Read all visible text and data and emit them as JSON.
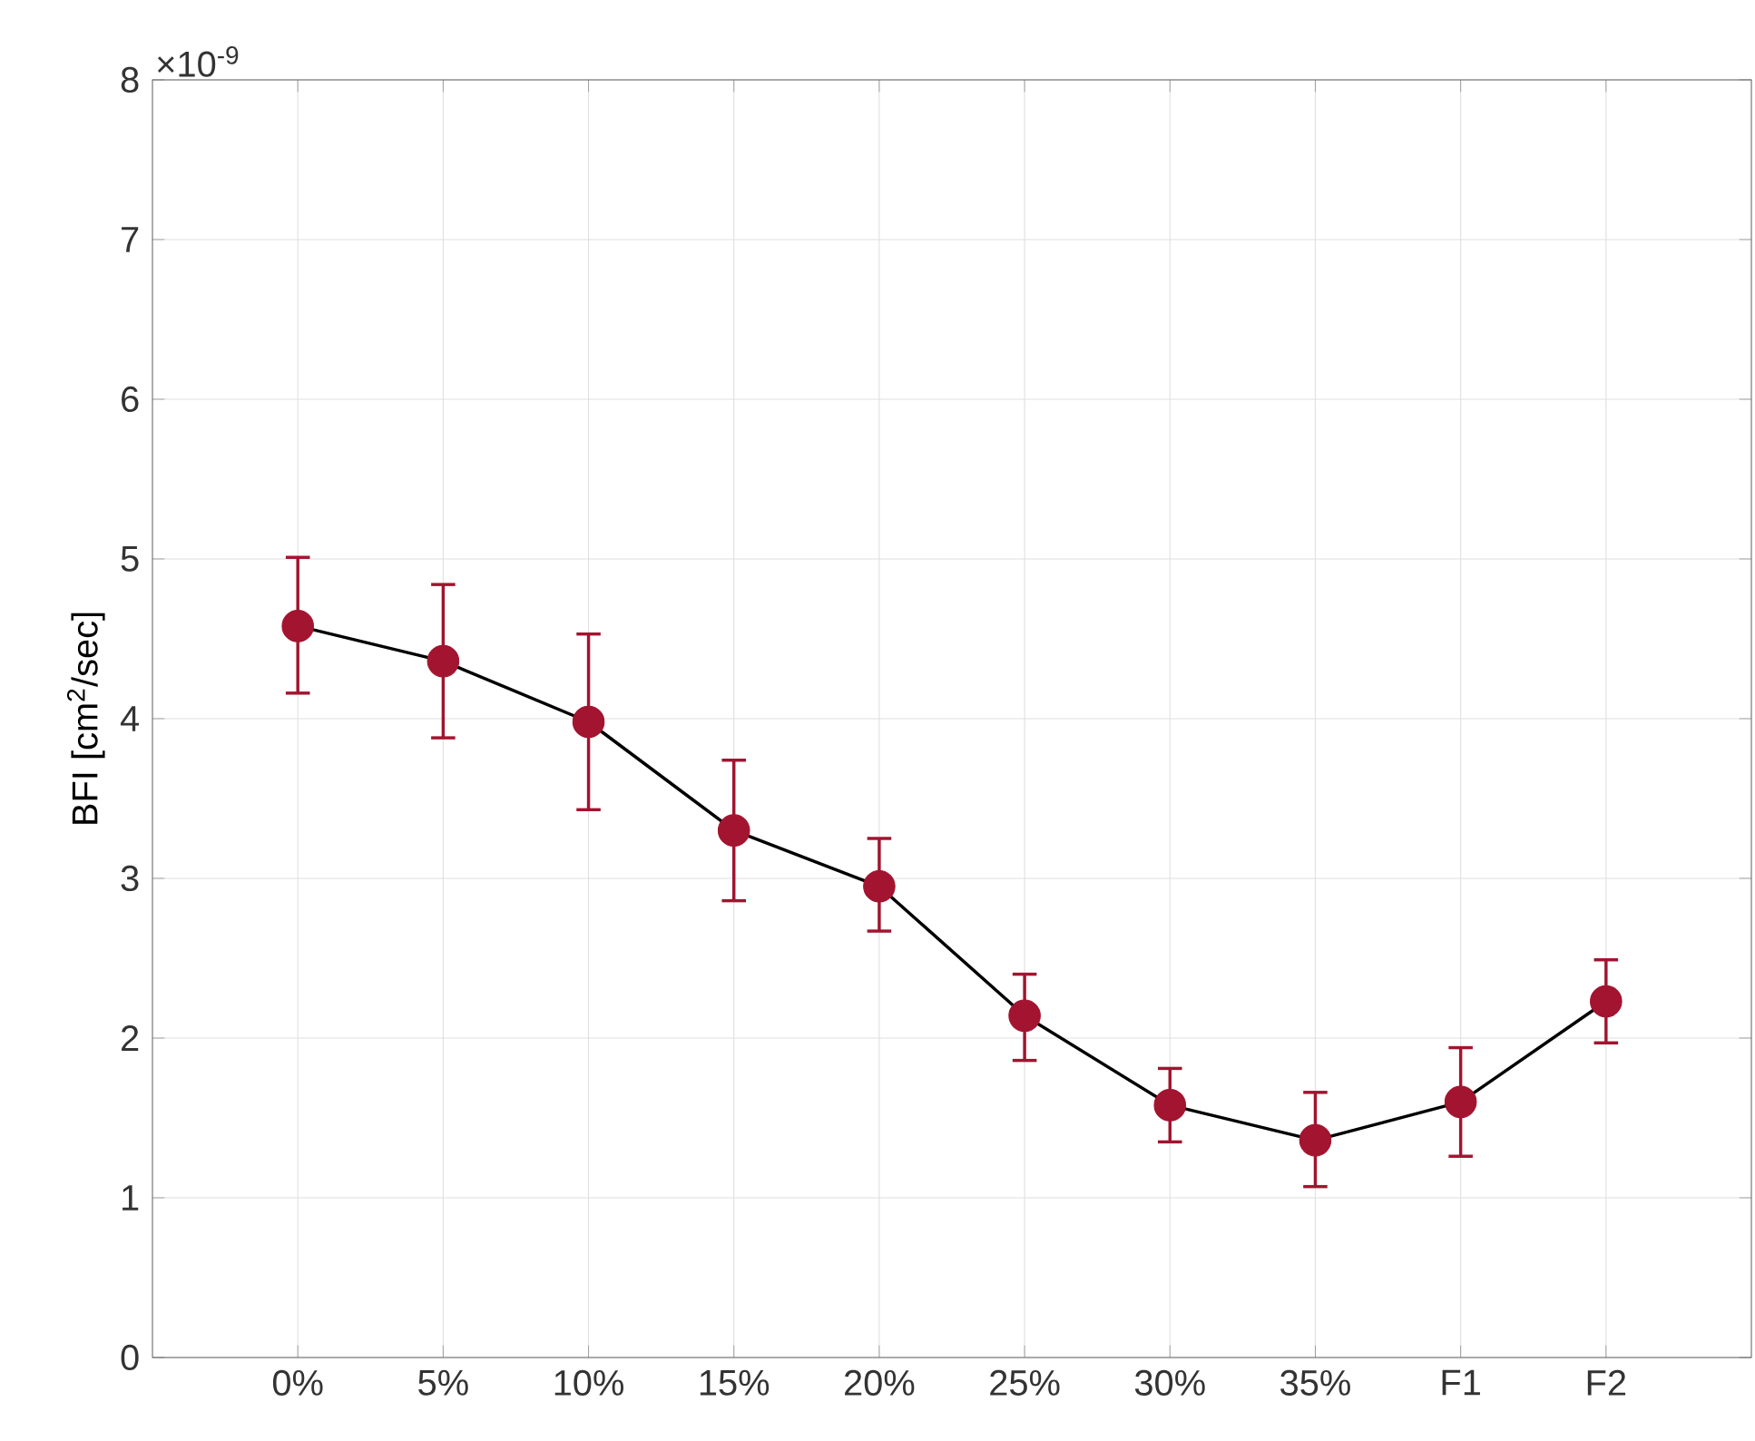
{
  "chart_data": {
    "type": "line",
    "ylabel": "BFI [cm$^{2}$/sec]",
    "annotations": [
      "×10$^{-9}$"
    ],
    "categories": [
      "0%",
      "5%",
      "10%",
      "15%",
      "20%",
      "25%",
      "30%",
      "35%",
      "F1",
      "F2"
    ],
    "series": [
      {
        "color": "#a2142f",
        "values": [
          4.58,
          4.36,
          3.98,
          3.3,
          2.95,
          2.14,
          1.58,
          1.36,
          1.6,
          2.23
        ],
        "errors": [
          [
            4.16,
            5.01
          ],
          [
            3.88,
            4.84
          ],
          [
            3.43,
            4.53
          ],
          [
            2.86,
            3.74
          ],
          [
            2.67,
            3.25
          ],
          [
            1.86,
            2.4
          ],
          [
            1.35,
            1.81
          ],
          [
            1.07,
            1.66
          ],
          [
            1.26,
            1.94
          ],
          [
            1.97,
            2.49
          ]
        ]
      }
    ],
    "ylim": [
      0,
      8
    ],
    "yticks": [
      0,
      1,
      2,
      3,
      4,
      5,
      6,
      7,
      8
    ],
    "grid": true,
    "marker": "circle",
    "line_style": "solid"
  }
}
